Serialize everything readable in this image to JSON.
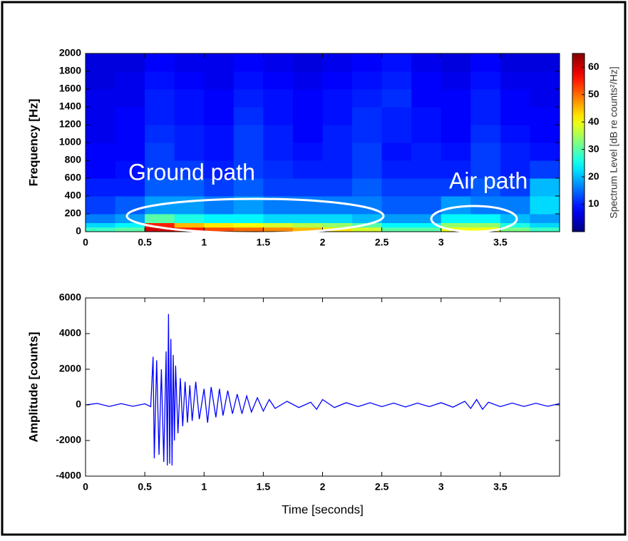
{
  "chart_data": [
    {
      "type": "heatmap",
      "ylabel": "Frequency [Hz]",
      "annotations": [
        "Ground path",
        "Air path"
      ],
      "xlim": [
        0,
        4
      ],
      "xticks": [
        0,
        0.5,
        1,
        1.5,
        2,
        2.5,
        3,
        3.5
      ],
      "ylim": [
        0,
        2000
      ],
      "yticks": [
        0,
        200,
        400,
        600,
        800,
        1000,
        1200,
        1400,
        1600,
        1800,
        2000
      ],
      "x_edges": [
        0,
        0.25,
        0.5,
        0.75,
        1,
        1.25,
        1.5,
        1.75,
        2,
        2.25,
        2.5,
        2.75,
        3,
        3.25,
        3.5,
        3.75,
        4
      ],
      "y_edges": [
        0,
        50,
        100,
        200,
        400,
        600,
        800,
        1000,
        1200,
        1400,
        1600,
        1800,
        2000
      ],
      "z": [
        [
          28,
          30,
          60,
          55,
          52,
          50,
          48,
          45,
          42,
          38,
          30,
          30,
          40,
          40,
          32,
          28
        ],
        [
          22,
          24,
          55,
          45,
          42,
          40,
          38,
          36,
          34,
          30,
          24,
          24,
          34,
          34,
          26,
          22
        ],
        [
          16,
          18,
          30,
          26,
          24,
          24,
          22,
          22,
          22,
          20,
          18,
          18,
          24,
          24,
          20,
          18
        ],
        [
          12,
          14,
          18,
          18,
          16,
          18,
          16,
          16,
          16,
          16,
          14,
          14,
          18,
          16,
          16,
          22
        ],
        [
          10,
          10,
          14,
          14,
          12,
          14,
          12,
          12,
          12,
          14,
          12,
          12,
          12,
          14,
          12,
          20
        ],
        [
          8,
          9,
          12,
          12,
          10,
          12,
          11,
          10,
          10,
          12,
          10,
          10,
          10,
          12,
          10,
          12
        ],
        [
          8,
          8,
          12,
          10,
          9,
          12,
          10,
          9,
          10,
          12,
          9,
          10,
          9,
          12,
          10,
          9
        ],
        [
          7,
          8,
          11,
          10,
          9,
          12,
          10,
          8,
          10,
          11,
          10,
          9,
          8,
          11,
          9,
          8
        ],
        [
          7,
          8,
          10,
          9,
          8,
          11,
          9,
          8,
          9,
          11,
          10,
          9,
          8,
          10,
          8,
          8
        ],
        [
          7,
          7,
          10,
          9,
          8,
          10,
          9,
          8,
          9,
          10,
          11,
          8,
          8,
          10,
          8,
          7
        ],
        [
          6,
          7,
          9,
          8,
          7,
          9,
          8,
          7,
          8,
          9,
          10,
          8,
          7,
          9,
          7,
          7
        ],
        [
          6,
          6,
          8,
          7,
          7,
          8,
          7,
          6,
          7,
          8,
          9,
          7,
          6,
          8,
          6,
          6
        ]
      ],
      "colormap": "jet",
      "clim": [
        0,
        65
      ],
      "cticks": [
        10,
        20,
        30,
        40,
        50,
        60
      ],
      "colorbar_label": "Spectrum Level [dB re counts²/Hz]"
    },
    {
      "type": "line",
      "ylabel": "Amplitude [counts]",
      "xlabel": "Time [seconds]",
      "color": "#0000ff",
      "xlim": [
        0,
        4
      ],
      "xticks": [
        0,
        0.5,
        1,
        1.5,
        2,
        2.5,
        3,
        3.5
      ],
      "ylim": [
        -4000,
        6000
      ],
      "yticks": [
        -4000,
        -2000,
        0,
        2000,
        4000,
        6000
      ],
      "x": [
        0,
        0.1,
        0.2,
        0.3,
        0.4,
        0.5,
        0.55,
        0.57,
        0.58,
        0.6,
        0.62,
        0.64,
        0.66,
        0.68,
        0.69,
        0.7,
        0.71,
        0.72,
        0.73,
        0.74,
        0.75,
        0.76,
        0.78,
        0.8,
        0.82,
        0.84,
        0.86,
        0.88,
        0.9,
        0.93,
        0.96,
        1,
        1.03,
        1.06,
        1.1,
        1.13,
        1.16,
        1.2,
        1.24,
        1.28,
        1.32,
        1.36,
        1.4,
        1.45,
        1.5,
        1.55,
        1.6,
        1.7,
        1.8,
        1.9,
        1.95,
        2,
        2.1,
        2.2,
        2.3,
        2.4,
        2.5,
        2.6,
        2.7,
        2.8,
        2.9,
        3,
        3.1,
        3.2,
        3.25,
        3.3,
        3.35,
        3.4,
        3.5,
        3.6,
        3.7,
        3.8,
        3.9,
        4
      ],
      "values": [
        0,
        80,
        -90,
        70,
        -80,
        60,
        -100,
        2700,
        -3000,
        2500,
        -2800,
        2000,
        -3200,
        3000,
        -3400,
        5100,
        -3300,
        3700,
        -3400,
        2800,
        -2000,
        2200,
        -1600,
        1500,
        -1200,
        1300,
        -1000,
        1100,
        -900,
        1300,
        -800,
        900,
        -1000,
        1000,
        -700,
        900,
        -600,
        800,
        -500,
        600,
        -500,
        500,
        -400,
        400,
        -350,
        300,
        -200,
        200,
        -150,
        150,
        -250,
        300,
        -150,
        120,
        -100,
        120,
        -100,
        100,
        -120,
        100,
        -100,
        120,
        -130,
        200,
        -200,
        300,
        -250,
        150,
        -100,
        100,
        -90,
        90,
        -80,
        70
      ]
    }
  ]
}
